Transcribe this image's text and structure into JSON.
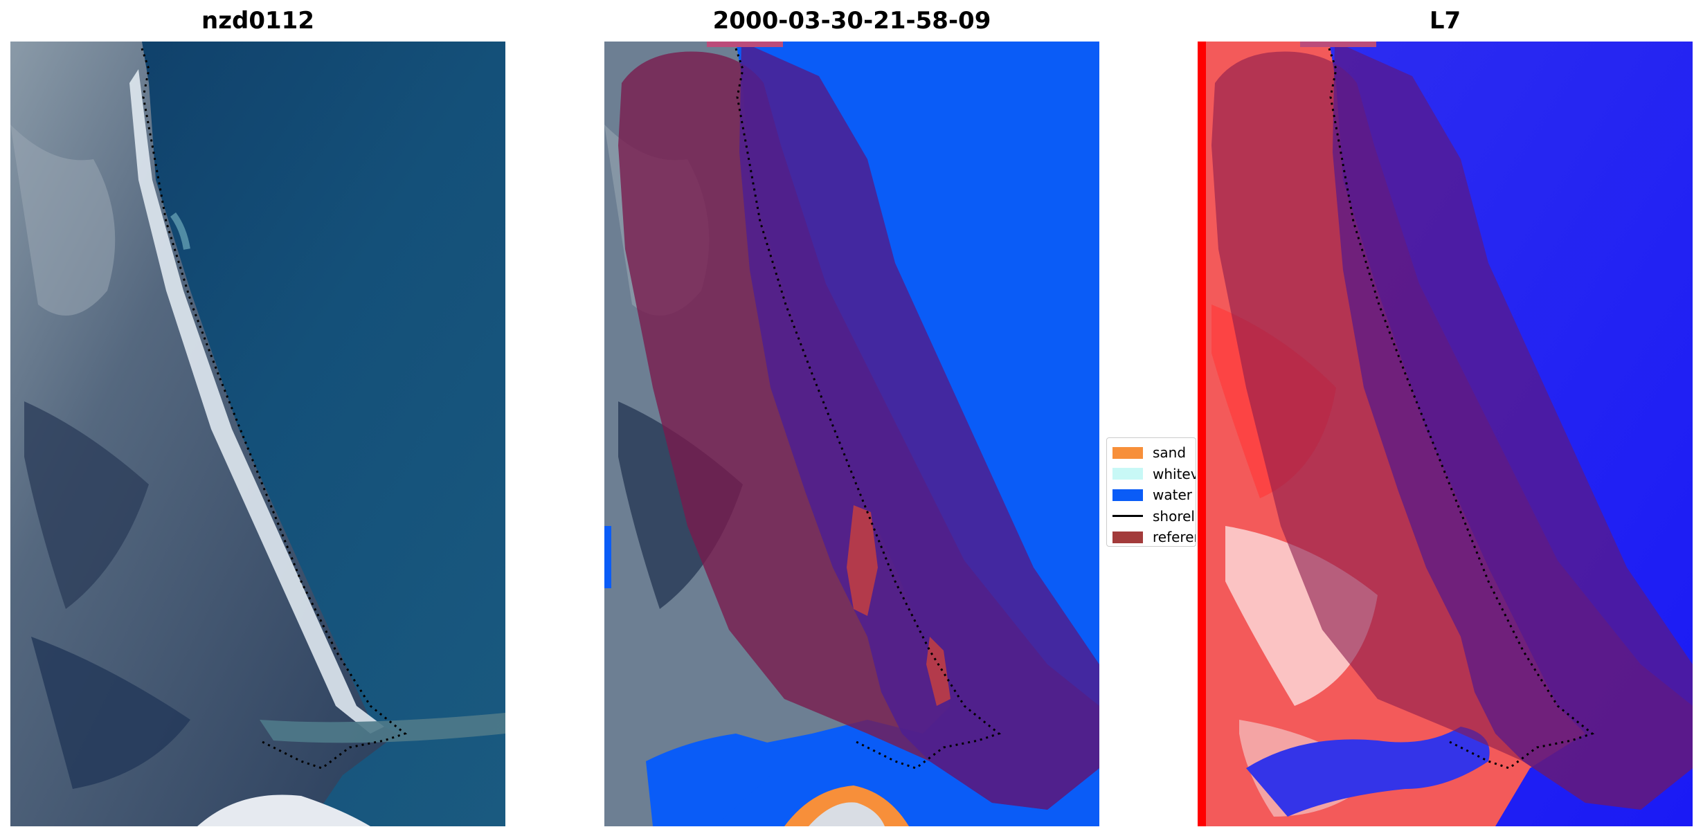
{
  "titles": {
    "left": "nzd0112",
    "middle": "2000-03-30-21-58-09",
    "right": "L7"
  },
  "legend": {
    "items": [
      {
        "label": "sand",
        "color": "#f78f3a",
        "kind": "patch"
      },
      {
        "label": "whitev",
        "color": "#c8f8f6",
        "kind": "patch"
      },
      {
        "label": "water",
        "color": "#0a5cf7",
        "kind": "patch"
      },
      {
        "label": "shorel",
        "color": "#000000",
        "kind": "line"
      },
      {
        "label": "referen",
        "color": "#a33b3b",
        "kind": "patch"
      }
    ]
  },
  "colors": {
    "ocean": "#1a4f7a",
    "land": "#3a5273",
    "beach": "#d8e2ea",
    "water_class": "#0a5cf7",
    "buffer_overlay": "#7a1a4d",
    "buffer_on_water": "#4d1f91",
    "index_water": "#2a2ae8",
    "index_land": "#f23b3b"
  }
}
